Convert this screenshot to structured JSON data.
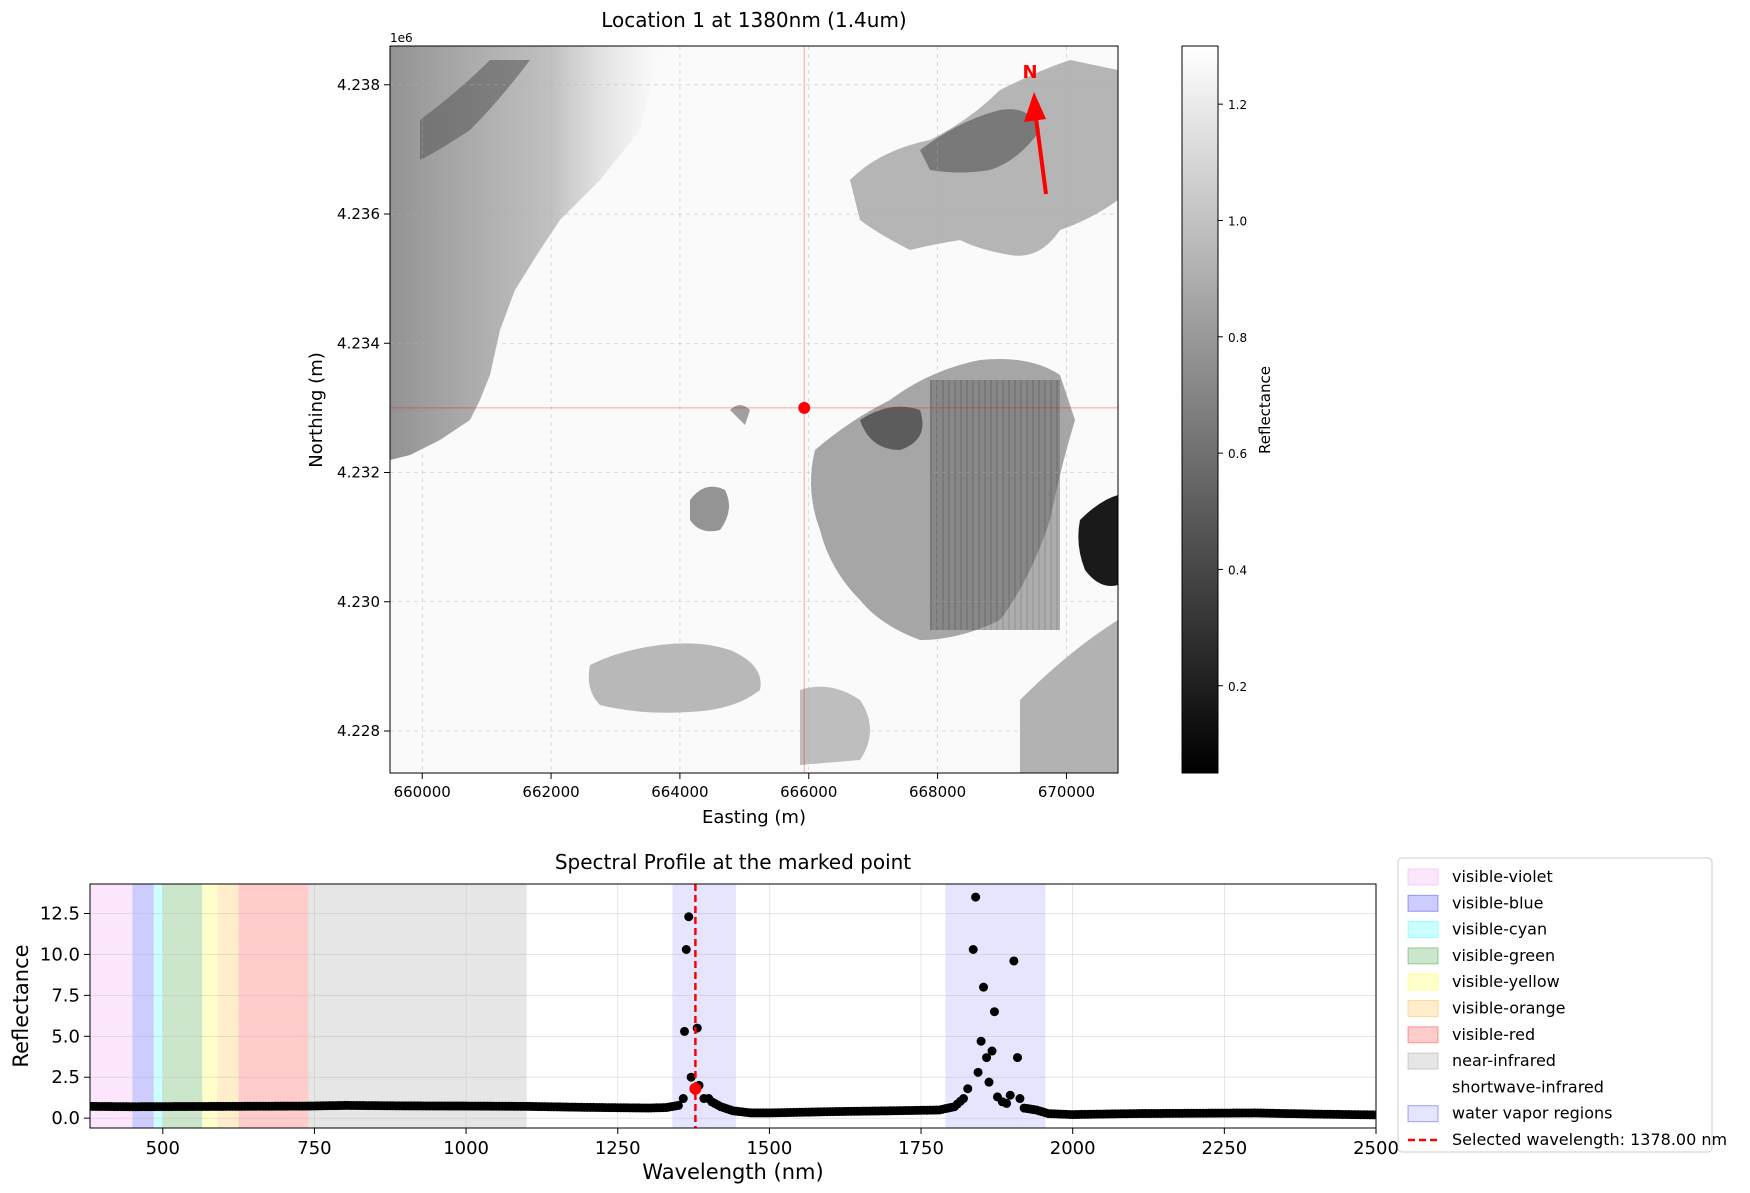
{
  "chart_data": [
    {
      "type": "heatmap",
      "title": "Location 1 at 1380nm (1.4um)",
      "xlabel": "Easting (m)",
      "ylabel": "Northing (m)",
      "offset_label": "1e6",
      "xlim": [
        659500,
        670800
      ],
      "ylim": [
        4227350,
        4238600
      ],
      "xticks": [
        660000,
        662000,
        664000,
        666000,
        668000,
        670000
      ],
      "xtick_labels": [
        "660000",
        "662000",
        "664000",
        "666000",
        "668000",
        "670000"
      ],
      "yticks": [
        4228000,
        4230000,
        4232000,
        4234000,
        4236000,
        4238000
      ],
      "ytick_labels": [
        "4.228",
        "4.230",
        "4.232",
        "4.234",
        "4.236",
        "4.238"
      ],
      "grid": true,
      "marked_point": {
        "x": 665930,
        "y": 4233000,
        "color": "#ff0000"
      },
      "north_arrow": {
        "label": "N",
        "color": "#ff0000"
      },
      "colorbar": {
        "label": "Reflectance",
        "range": [
          0.05,
          1.3
        ],
        "ticks": [
          0.2,
          0.4,
          0.6,
          0.8,
          1.0,
          1.2
        ],
        "tick_labels": [
          "0.2",
          "0.4",
          "0.6",
          "0.8",
          "1.0",
          "1.2"
        ],
        "colormap": "gray"
      }
    },
    {
      "type": "scatter",
      "title": "Spectral Profile at the marked point",
      "xlabel": "Wavelength (nm)",
      "ylabel": "Reflectance",
      "xlim": [
        380,
        2500
      ],
      "ylim": [
        -0.6,
        14.3
      ],
      "xticks": [
        500,
        750,
        1000,
        1250,
        1500,
        1750,
        2000,
        2250,
        2500
      ],
      "xtick_labels": [
        "500",
        "750",
        "1000",
        "1250",
        "1500",
        "1750",
        "2000",
        "2250",
        "2500"
      ],
      "yticks": [
        0.0,
        2.5,
        5.0,
        7.5,
        10.0,
        12.5
      ],
      "ytick_labels": [
        "0.0",
        "2.5",
        "5.0",
        "7.5",
        "10.0",
        "12.5"
      ],
      "grid": true,
      "legend_position": "outside right",
      "regions": [
        {
          "name": "visible-violet",
          "start": 380,
          "end": 450,
          "color": "#ee82ee",
          "alpha": 0.2
        },
        {
          "name": "visible-blue",
          "start": 450,
          "end": 485,
          "color": "#0000ff",
          "alpha": 0.2
        },
        {
          "name": "visible-cyan",
          "start": 485,
          "end": 500,
          "color": "#00ffff",
          "alpha": 0.2
        },
        {
          "name": "visible-green",
          "start": 500,
          "end": 565,
          "color": "#008000",
          "alpha": 0.2
        },
        {
          "name": "visible-yellow",
          "start": 565,
          "end": 590,
          "color": "#ffff00",
          "alpha": 0.2
        },
        {
          "name": "visible-orange",
          "start": 590,
          "end": 625,
          "color": "#ffa500",
          "alpha": 0.2
        },
        {
          "name": "visible-red",
          "start": 625,
          "end": 740,
          "color": "#ff0000",
          "alpha": 0.2
        },
        {
          "name": "near-infrared",
          "start": 740,
          "end": 1100,
          "color": "#808080",
          "alpha": 0.2
        },
        {
          "name": "shortwave-infrared",
          "start": 1100,
          "end": 2500,
          "color": "#ffffff",
          "alpha": 0.2
        },
        {
          "name": "water vapor regions",
          "start": 1340,
          "end": 1445,
          "color": "#0000ff",
          "alpha": 0.1
        },
        {
          "name": "water vapor regions",
          "start": 1790,
          "end": 1955,
          "color": "#0000ff",
          "alpha": 0.1
        }
      ],
      "selected_wavelength": {
        "value": 1378.0,
        "label": "Selected wavelength: 1378.00 nm",
        "color": "#ff0000",
        "reflectance": 1.8
      },
      "legend": [
        {
          "label": "visible-violet",
          "kind": "patch",
          "color": "#ee82ee",
          "alpha": 0.2
        },
        {
          "label": "visible-blue",
          "kind": "patch",
          "color": "#0000ff",
          "alpha": 0.2
        },
        {
          "label": "visible-cyan",
          "kind": "patch",
          "color": "#00ffff",
          "alpha": 0.2
        },
        {
          "label": "visible-green",
          "kind": "patch",
          "color": "#008000",
          "alpha": 0.2
        },
        {
          "label": "visible-yellow",
          "kind": "patch",
          "color": "#ffff00",
          "alpha": 0.2
        },
        {
          "label": "visible-orange",
          "kind": "patch",
          "color": "#ffa500",
          "alpha": 0.2
        },
        {
          "label": "visible-red",
          "kind": "patch",
          "color": "#ff0000",
          "alpha": 0.2
        },
        {
          "label": "near-infrared",
          "kind": "patch",
          "color": "#808080",
          "alpha": 0.2
        },
        {
          "label": "shortwave-infrared",
          "kind": "patch",
          "color": "#ffffff",
          "alpha": 0.2
        },
        {
          "label": "water vapor regions",
          "kind": "patch",
          "color": "#0000ff",
          "alpha": 0.1
        },
        {
          "label": "Selected wavelength: 1378.00 nm",
          "kind": "dashed-line",
          "color": "#ff0000",
          "alpha": 1
        }
      ],
      "profile_anchors": [
        [
          380,
          0.72
        ],
        [
          450,
          0.7
        ],
        [
          600,
          0.72
        ],
        [
          740,
          0.74
        ],
        [
          800,
          0.78
        ],
        [
          900,
          0.75
        ],
        [
          1000,
          0.74
        ],
        [
          1100,
          0.72
        ],
        [
          1200,
          0.66
        ],
        [
          1300,
          0.62
        ],
        [
          1330,
          0.65
        ],
        [
          1400,
          1.1
        ],
        [
          1420,
          0.7
        ],
        [
          1440,
          0.45
        ],
        [
          1470,
          0.32
        ],
        [
          1500,
          0.32
        ],
        [
          1600,
          0.4
        ],
        [
          1700,
          0.45
        ],
        [
          1780,
          0.5
        ],
        [
          1805,
          0.7
        ],
        [
          1820,
          1.2
        ],
        [
          1940,
          0.5
        ],
        [
          1960,
          0.28
        ],
        [
          2000,
          0.22
        ],
        [
          2100,
          0.28
        ],
        [
          2200,
          0.3
        ],
        [
          2300,
          0.32
        ],
        [
          2400,
          0.25
        ],
        [
          2500,
          0.2
        ]
      ],
      "peak_points": [
        {
          "x": 1358,
          "y": 1.2
        },
        {
          "x": 1360,
          "y": 5.3
        },
        {
          "x": 1363,
          "y": 10.3
        },
        {
          "x": 1367,
          "y": 12.3
        },
        {
          "x": 1371,
          "y": 2.5
        },
        {
          "x": 1381,
          "y": 5.5
        },
        {
          "x": 1384,
          "y": 2.0
        },
        {
          "x": 1392,
          "y": 1.2
        },
        {
          "x": 1400,
          "y": 1.2
        },
        {
          "x": 1827,
          "y": 1.8
        },
        {
          "x": 1836,
          "y": 10.3
        },
        {
          "x": 1840,
          "y": 13.5
        },
        {
          "x": 1844,
          "y": 2.8
        },
        {
          "x": 1849,
          "y": 4.7
        },
        {
          "x": 1853,
          "y": 8.0
        },
        {
          "x": 1858,
          "y": 3.7
        },
        {
          "x": 1862,
          "y": 2.2
        },
        {
          "x": 1867,
          "y": 4.1
        },
        {
          "x": 1871,
          "y": 6.5
        },
        {
          "x": 1876,
          "y": 1.3
        },
        {
          "x": 1884,
          "y": 1.0
        },
        {
          "x": 1891,
          "y": 0.9
        },
        {
          "x": 1897,
          "y": 1.4
        },
        {
          "x": 1903,
          "y": 9.6
        },
        {
          "x": 1909,
          "y": 3.7
        },
        {
          "x": 1913,
          "y": 1.2
        }
      ]
    }
  ]
}
